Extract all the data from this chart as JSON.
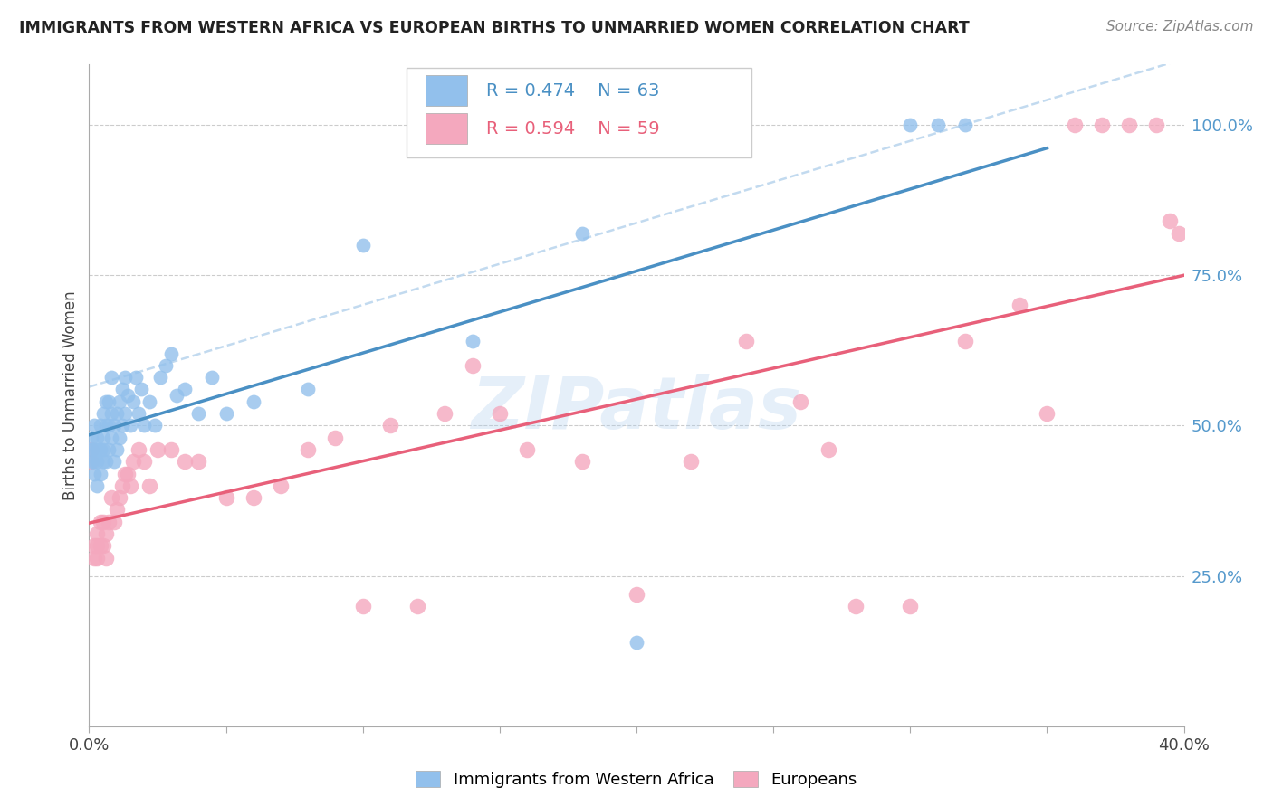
{
  "title": "IMMIGRANTS FROM WESTERN AFRICA VS EUROPEAN BIRTHS TO UNMARRIED WOMEN CORRELATION CHART",
  "source": "Source: ZipAtlas.com",
  "ylabel": "Births to Unmarried Women",
  "ylabel_right_ticks": [
    "25.0%",
    "50.0%",
    "75.0%",
    "100.0%"
  ],
  "ylabel_right_vals": [
    0.25,
    0.5,
    0.75,
    1.0
  ],
  "legend_blue_r": "R = 0.474",
  "legend_blue_n": "N = 63",
  "legend_pink_r": "R = 0.594",
  "legend_pink_n": "N = 59",
  "legend_label_blue": "Immigrants from Western Africa",
  "legend_label_pink": "Europeans",
  "watermark": "ZIPatlas",
  "blue_color": "#92C0EC",
  "pink_color": "#F4A8BE",
  "blue_line_color": "#4A90C4",
  "pink_line_color": "#E8607A",
  "blue_dashed_color": "#B8D4ED",
  "background_color": "#FFFFFF",
  "grid_color": "#CCCCCC",
  "blue_scatter_x": [
    0.001,
    0.001,
    0.001,
    0.002,
    0.002,
    0.002,
    0.002,
    0.003,
    0.003,
    0.003,
    0.003,
    0.004,
    0.004,
    0.004,
    0.005,
    0.005,
    0.005,
    0.005,
    0.006,
    0.006,
    0.006,
    0.007,
    0.007,
    0.007,
    0.008,
    0.008,
    0.008,
    0.009,
    0.009,
    0.01,
    0.01,
    0.011,
    0.011,
    0.012,
    0.012,
    0.013,
    0.013,
    0.014,
    0.015,
    0.016,
    0.017,
    0.018,
    0.019,
    0.02,
    0.022,
    0.024,
    0.026,
    0.028,
    0.03,
    0.032,
    0.035,
    0.04,
    0.045,
    0.05,
    0.06,
    0.08,
    0.1,
    0.14,
    0.18,
    0.2,
    0.3,
    0.31,
    0.32
  ],
  "blue_scatter_y": [
    0.44,
    0.46,
    0.48,
    0.42,
    0.44,
    0.46,
    0.5,
    0.4,
    0.44,
    0.46,
    0.48,
    0.42,
    0.46,
    0.5,
    0.44,
    0.46,
    0.48,
    0.52,
    0.44,
    0.5,
    0.54,
    0.46,
    0.5,
    0.54,
    0.48,
    0.52,
    0.58,
    0.44,
    0.5,
    0.46,
    0.52,
    0.48,
    0.54,
    0.5,
    0.56,
    0.52,
    0.58,
    0.55,
    0.5,
    0.54,
    0.58,
    0.52,
    0.56,
    0.5,
    0.54,
    0.5,
    0.58,
    0.6,
    0.62,
    0.55,
    0.56,
    0.52,
    0.58,
    0.52,
    0.54,
    0.56,
    0.8,
    0.64,
    0.82,
    0.14,
    1.0,
    1.0,
    1.0
  ],
  "pink_scatter_x": [
    0.001,
    0.001,
    0.002,
    0.002,
    0.003,
    0.003,
    0.003,
    0.004,
    0.004,
    0.005,
    0.005,
    0.006,
    0.006,
    0.007,
    0.008,
    0.009,
    0.01,
    0.011,
    0.012,
    0.013,
    0.014,
    0.015,
    0.016,
    0.018,
    0.02,
    0.022,
    0.025,
    0.03,
    0.035,
    0.04,
    0.05,
    0.06,
    0.07,
    0.08,
    0.09,
    0.1,
    0.11,
    0.12,
    0.13,
    0.14,
    0.15,
    0.16,
    0.18,
    0.2,
    0.22,
    0.24,
    0.26,
    0.27,
    0.28,
    0.3,
    0.32,
    0.34,
    0.35,
    0.36,
    0.37,
    0.38,
    0.39,
    0.395,
    0.398
  ],
  "pink_scatter_y": [
    0.44,
    0.46,
    0.28,
    0.3,
    0.28,
    0.3,
    0.32,
    0.3,
    0.34,
    0.3,
    0.34,
    0.28,
    0.32,
    0.34,
    0.38,
    0.34,
    0.36,
    0.38,
    0.4,
    0.42,
    0.42,
    0.4,
    0.44,
    0.46,
    0.44,
    0.4,
    0.46,
    0.46,
    0.44,
    0.44,
    0.38,
    0.38,
    0.4,
    0.46,
    0.48,
    0.2,
    0.5,
    0.2,
    0.52,
    0.6,
    0.52,
    0.46,
    0.44,
    0.22,
    0.44,
    0.64,
    0.54,
    0.46,
    0.2,
    0.2,
    0.64,
    0.7,
    0.52,
    1.0,
    1.0,
    1.0,
    1.0,
    0.84,
    0.82
  ],
  "xlim": [
    0.0,
    0.4
  ],
  "ylim": [
    0.0,
    1.1
  ],
  "x_ticks": [
    0.0,
    0.05,
    0.1,
    0.15,
    0.2,
    0.25,
    0.3,
    0.35,
    0.4
  ]
}
